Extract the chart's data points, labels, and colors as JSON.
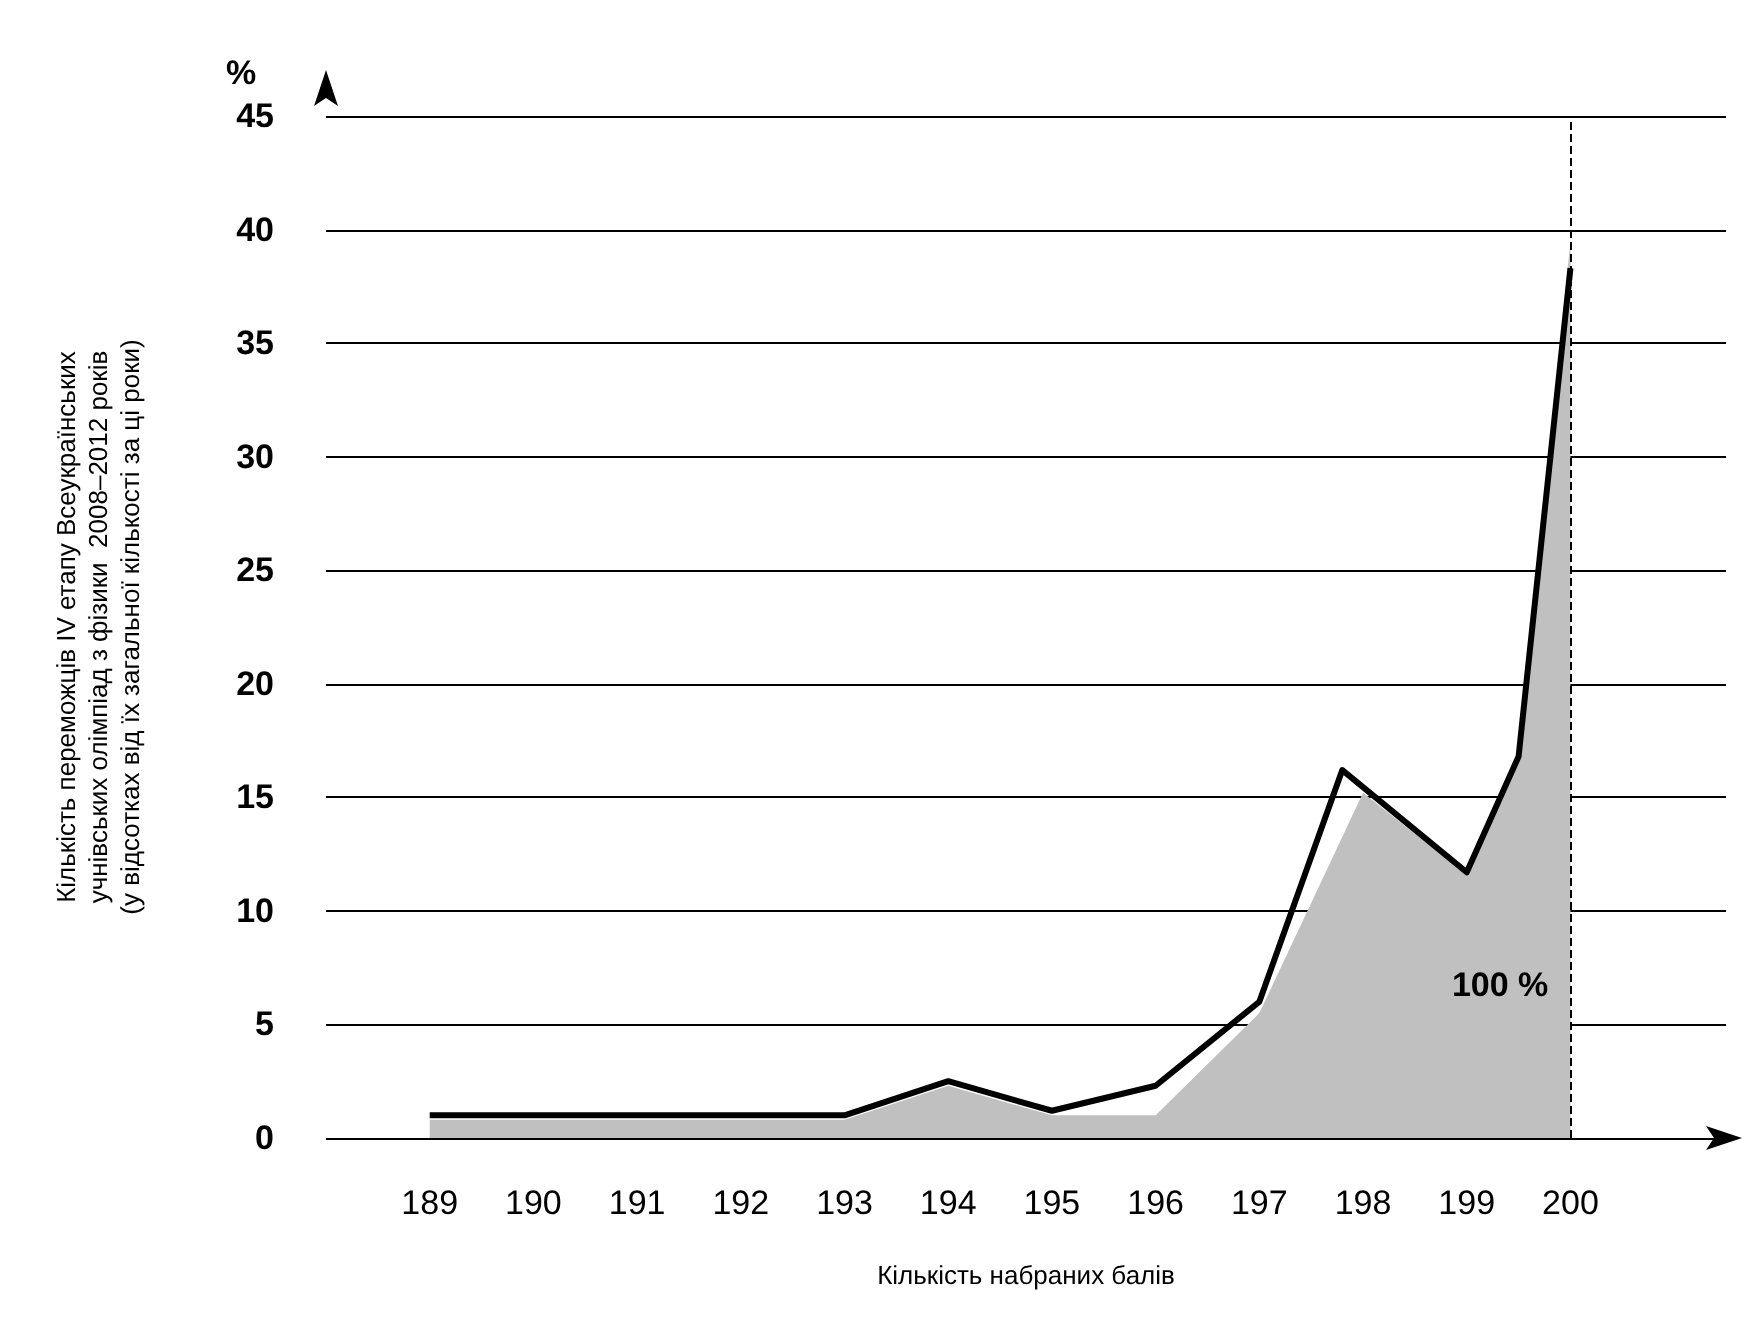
{
  "chart_data": {
    "type": "line",
    "xlabel": "Кількість набраних балів",
    "ylabel": "Кількість переможців IV етапу Всеукраїнських\nучнівських олімпіад з фізики  2008–2012 років\n(у відсотках від їх загальної кількості за ці роки)",
    "series": [
      {
        "type": "area",
        "color": "#c0c0c0",
        "x": [
          189,
          193,
          194,
          195,
          196,
          197,
          198,
          199,
          199.5,
          200
        ],
        "values": [
          0.8,
          0.8,
          2.3,
          1.0,
          1.0,
          5.5,
          15.2,
          11.6,
          16.8,
          39.5
        ]
      },
      {
        "color": "#000000",
        "x": [
          189,
          193,
          194,
          195,
          196,
          197,
          197.8,
          199,
          199.5,
          200
        ],
        "values": [
          1.0,
          1.0,
          2.5,
          1.2,
          2.3,
          6.0,
          16.2,
          11.7,
          16.8,
          38.3
        ]
      }
    ],
    "xlim": [
      188,
      201.5
    ],
    "xticks": [
      189,
      190,
      191,
      192,
      193,
      194,
      195,
      196,
      197,
      198,
      199,
      200
    ],
    "ylim": [
      0,
      45
    ],
    "yticks": [
      0,
      5,
      10,
      15,
      20,
      25,
      30,
      35,
      40,
      45
    ],
    "grid": "y",
    "marker": "none",
    "line_style": "solid",
    "ref_lines": [
      {
        "axis": "x",
        "value": 200,
        "line_style": "dashed",
        "color": "#000000"
      }
    ],
    "annotations": [
      "%",
      "100 %"
    ]
  }
}
